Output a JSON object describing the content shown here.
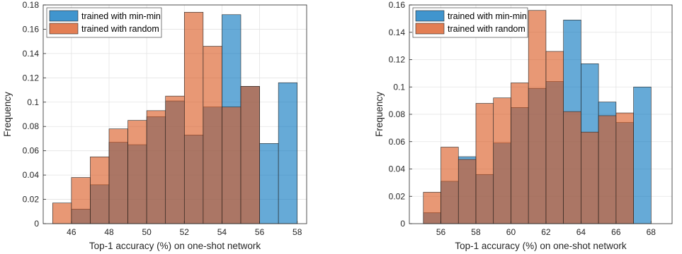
{
  "chart_data": [
    {
      "type": "bar",
      "subtype": "overlaid-histogram",
      "xlabel": "Top-1 accuracy (%) on one-shot network",
      "ylabel": "Frequency",
      "xlim": [
        44.5,
        58.5
      ],
      "ylim": [
        0,
        0.18
      ],
      "xticks": [
        46,
        48,
        50,
        52,
        54,
        56,
        58
      ],
      "xtick_labels": [
        "46",
        "48",
        "50",
        "52",
        "54",
        "56",
        "58"
      ],
      "yticks": [
        0,
        0.02,
        0.04,
        0.06,
        0.08,
        0.1,
        0.12,
        0.14,
        0.16,
        0.18
      ],
      "ytick_labels": [
        "0",
        "0.02",
        "0.04",
        "0.06",
        "0.08",
        "0.1",
        "0.12",
        "0.14",
        "0.16",
        "0.18"
      ],
      "grid": true,
      "legend_position": "top-left",
      "series": [
        {
          "name": "trained with min-min",
          "color": "#0072BD",
          "bin_edges": [
            46,
            47,
            48,
            49,
            50,
            51,
            52,
            53,
            54,
            55,
            56,
            57,
            58
          ],
          "values": [
            0.012,
            0.032,
            0.067,
            0.065,
            0.088,
            0.101,
            0.073,
            0.096,
            0.172,
            0.113,
            0.066,
            0.116
          ]
        },
        {
          "name": "trained with random",
          "color": "#D95319",
          "bin_edges": [
            45,
            46,
            47,
            48,
            49,
            50,
            51,
            52,
            53,
            54,
            55,
            56
          ],
          "values": [
            0.017,
            0.038,
            0.055,
            0.078,
            0.085,
            0.093,
            0.105,
            0.174,
            0.146,
            0.096,
            0.113
          ]
        }
      ]
    },
    {
      "type": "bar",
      "subtype": "overlaid-histogram",
      "xlabel": "Top-1 accuracy (%) on one-shot network",
      "ylabel": "Frequency",
      "xlim": [
        54.2,
        69.2
      ],
      "ylim": [
        0,
        0.16
      ],
      "xticks": [
        56,
        58,
        60,
        62,
        64,
        66,
        68
      ],
      "xtick_labels": [
        "56",
        "58",
        "60",
        "62",
        "64",
        "66",
        "68"
      ],
      "yticks": [
        0,
        0.02,
        0.04,
        0.06,
        0.08,
        0.1,
        0.12,
        0.14,
        0.16
      ],
      "ytick_labels": [
        "0",
        "0.02",
        "0.04",
        "0.06",
        "0.08",
        "0.1",
        "0.12",
        "0.14",
        "0.16"
      ],
      "grid": true,
      "legend_position": "top-left",
      "series": [
        {
          "name": "trained with min-min",
          "color": "#0072BD",
          "bin_edges": [
            55,
            56,
            57,
            58,
            59,
            60,
            61,
            62,
            63,
            64,
            65,
            66,
            67,
            68
          ],
          "values": [
            0.008,
            0.031,
            0.049,
            0.036,
            0.059,
            0.085,
            0.099,
            0.104,
            0.149,
            0.117,
            0.089,
            0.074,
            0.1
          ]
        },
        {
          "name": "trained with random",
          "color": "#D95319",
          "bin_edges": [
            55,
            56,
            57,
            58,
            59,
            60,
            61,
            62,
            63,
            64,
            65,
            66,
            67
          ],
          "values": [
            0.023,
            0.056,
            0.047,
            0.088,
            0.092,
            0.103,
            0.156,
            0.126,
            0.082,
            0.067,
            0.079,
            0.081
          ]
        }
      ]
    }
  ]
}
